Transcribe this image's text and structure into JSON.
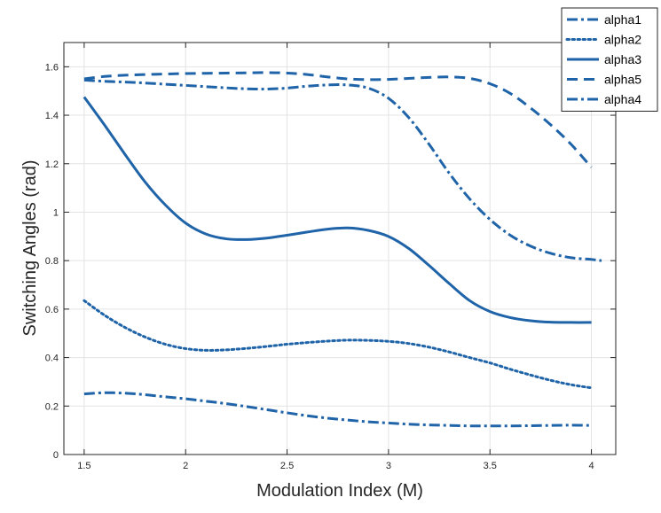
{
  "chart_data": {
    "type": "line",
    "title": "",
    "xlabel": "Modulation Index (M)",
    "ylabel": "Switching Angles (rad)",
    "xlim": [
      1.4,
      4.12
    ],
    "ylim": [
      0,
      1.7
    ],
    "xticks": [
      1.5,
      2,
      2.5,
      3,
      3.5,
      4
    ],
    "xtick_labels": [
      "1.5",
      "2",
      "2.5",
      "3",
      "3.5",
      "4"
    ],
    "yticks": [
      0,
      0.2,
      0.4,
      0.6,
      0.8,
      1,
      1.2,
      1.4,
      1.6
    ],
    "ytick_labels": [
      "0",
      "0.2",
      "0.4",
      "0.6",
      "0.8",
      "1",
      "1.2",
      "1.4",
      "1.6"
    ],
    "grid": true,
    "legend_position": "top-right",
    "line_color": "#1f63a8",
    "series": [
      {
        "name": "alpha1",
        "style": "dash-dot",
        "x": [
          1.5,
          1.6,
          1.7,
          1.8,
          1.9,
          2.0,
          2.1,
          2.2,
          2.3,
          2.4,
          2.5,
          2.6,
          2.7,
          2.8,
          2.9,
          3.0,
          3.1,
          3.2,
          3.3,
          3.4,
          3.5,
          3.6,
          3.7,
          3.8,
          3.9,
          4.0
        ],
        "y": [
          0.25,
          0.255,
          0.253,
          0.247,
          0.238,
          0.23,
          0.22,
          0.21,
          0.198,
          0.185,
          0.172,
          0.16,
          0.15,
          0.142,
          0.135,
          0.13,
          0.125,
          0.122,
          0.12,
          0.118,
          0.118,
          0.118,
          0.119,
          0.12,
          0.121,
          0.12
        ]
      },
      {
        "name": "alpha2",
        "style": "dotted",
        "x": [
          1.5,
          1.6,
          1.7,
          1.8,
          1.9,
          2.0,
          2.1,
          2.2,
          2.3,
          2.4,
          2.5,
          2.6,
          2.7,
          2.8,
          2.9,
          3.0,
          3.1,
          3.2,
          3.3,
          3.4,
          3.5,
          3.6,
          3.7,
          3.8,
          3.9,
          4.0
        ],
        "y": [
          0.635,
          0.575,
          0.525,
          0.485,
          0.455,
          0.437,
          0.43,
          0.432,
          0.438,
          0.446,
          0.455,
          0.462,
          0.468,
          0.472,
          0.471,
          0.467,
          0.458,
          0.443,
          0.423,
          0.4,
          0.378,
          0.352,
          0.328,
          0.306,
          0.288,
          0.275
        ]
      },
      {
        "name": "alpha3",
        "style": "solid",
        "x": [
          1.5,
          1.6,
          1.7,
          1.8,
          1.9,
          2.0,
          2.1,
          2.2,
          2.3,
          2.4,
          2.5,
          2.6,
          2.7,
          2.8,
          2.9,
          3.0,
          3.1,
          3.2,
          3.3,
          3.4,
          3.5,
          3.6,
          3.7,
          3.8,
          3.9,
          4.0
        ],
        "y": [
          1.475,
          1.36,
          1.24,
          1.125,
          1.03,
          0.955,
          0.91,
          0.89,
          0.887,
          0.893,
          0.905,
          0.918,
          0.93,
          0.935,
          0.925,
          0.9,
          0.85,
          0.78,
          0.705,
          0.635,
          0.59,
          0.565,
          0.552,
          0.546,
          0.545,
          0.545
        ]
      },
      {
        "name": "alpha5",
        "style": "dashed",
        "x": [
          1.5,
          1.6,
          1.7,
          1.8,
          1.9,
          2.0,
          2.1,
          2.2,
          2.3,
          2.4,
          2.5,
          2.6,
          2.7,
          2.8,
          2.9,
          3.0,
          3.1,
          3.2,
          3.3,
          3.4,
          3.5,
          3.6,
          3.7,
          3.8,
          3.9,
          4.0
        ],
        "y": [
          1.55,
          1.56,
          1.565,
          1.568,
          1.57,
          1.572,
          1.573,
          1.574,
          1.575,
          1.576,
          1.574,
          1.568,
          1.558,
          1.55,
          1.547,
          1.548,
          1.552,
          1.556,
          1.558,
          1.552,
          1.53,
          1.49,
          1.43,
          1.36,
          1.28,
          1.185
        ]
      },
      {
        "name": "alpha4",
        "style": "dash-dot",
        "x": [
          1.5,
          1.6,
          1.7,
          1.8,
          1.9,
          2.0,
          2.1,
          2.2,
          2.3,
          2.4,
          2.5,
          2.6,
          2.7,
          2.8,
          2.9,
          3.0,
          3.1,
          3.2,
          3.3,
          3.4,
          3.5,
          3.6,
          3.7,
          3.8,
          3.9,
          4.0,
          4.05
        ],
        "y": [
          1.545,
          1.54,
          1.537,
          1.533,
          1.528,
          1.523,
          1.518,
          1.513,
          1.509,
          1.508,
          1.512,
          1.52,
          1.525,
          1.525,
          1.512,
          1.47,
          1.39,
          1.28,
          1.16,
          1.055,
          0.97,
          0.905,
          0.86,
          0.83,
          0.812,
          0.805,
          0.8
        ]
      }
    ]
  }
}
